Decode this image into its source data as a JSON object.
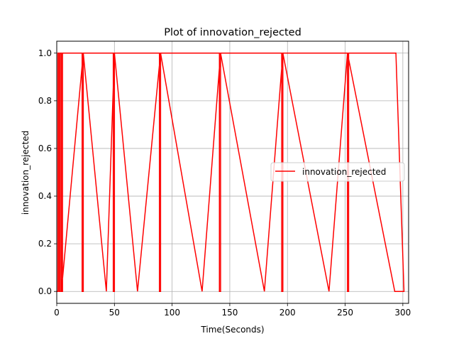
{
  "chart_data": {
    "type": "line",
    "title": "Plot of innovation_rejected",
    "xlabel": "Time(Seconds)",
    "ylabel": "innovation_rejected",
    "xlim": [
      0,
      305
    ],
    "ylim": [
      -0.05,
      1.05
    ],
    "xticks": [
      0,
      50,
      100,
      150,
      200,
      250,
      300
    ],
    "yticks": [
      0.0,
      0.2,
      0.4,
      0.6,
      0.8,
      1.0
    ],
    "xtick_labels": [
      "0",
      "50",
      "100",
      "150",
      "200",
      "250",
      "300"
    ],
    "ytick_labels": [
      "0.0",
      "0.2",
      "0.4",
      "0.6",
      "0.8",
      "1.0"
    ],
    "grid": true,
    "legend_position": "center-right",
    "series": [
      {
        "name": "innovation_rejected",
        "color": "#ff0000",
        "x": [
          0,
          1,
          1,
          2,
          2,
          3,
          3,
          4,
          4,
          5,
          5,
          22,
          22,
          23,
          23,
          49,
          49,
          50,
          50,
          89,
          89,
          90,
          90,
          141,
          141,
          142,
          142,
          195,
          195,
          196,
          196,
          252,
          252,
          253,
          253,
          294,
          301,
          293,
          252,
          236,
          196,
          180,
          142,
          126,
          90,
          70,
          50,
          43,
          23,
          4,
          4
        ],
        "y": [
          0,
          0,
          1,
          1,
          0,
          0,
          1,
          1,
          0,
          0,
          1,
          1,
          0,
          0,
          1,
          1,
          0,
          0,
          1,
          1,
          0,
          0,
          1,
          1,
          0,
          0,
          1,
          1,
          0,
          0,
          1,
          1,
          0,
          0,
          1,
          1,
          0,
          0,
          1,
          0,
          1,
          0,
          1,
          0,
          1,
          0,
          1,
          0,
          1,
          0,
          0
        ]
      }
    ]
  }
}
